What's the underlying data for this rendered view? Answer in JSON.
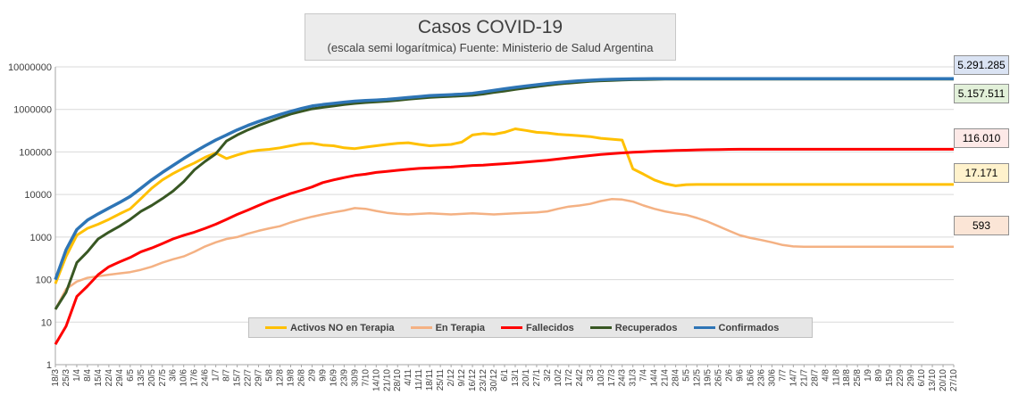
{
  "title": "Casos COVID-19",
  "subtitle": "(escala semi logarítmica) Fuente: Ministerio de Salud Argentina",
  "colors": {
    "activos": "#ffc000",
    "terapia": "#f4b183",
    "fallecidos": "#ff0000",
    "recuperados": "#385723",
    "confirmados": "#2e75b6",
    "grid": "#d9d9d9"
  },
  "callouts": [
    {
      "series": "Confirmados",
      "label": "5.291.285",
      "value": 5291285,
      "bg": "#dae3f3"
    },
    {
      "series": "Recuperados",
      "label": "5.157.511",
      "value": 5157511,
      "bg": "#e2f0d9"
    },
    {
      "series": "Fallecidos",
      "label": "116.010",
      "value": 116010,
      "bg": "#fde9e7"
    },
    {
      "series": "Activos NO en Terapia",
      "label": "17.171",
      "value": 17171,
      "bg": "#fff2cc"
    },
    {
      "series": "En Terapia",
      "label": "593",
      "value": 593,
      "bg": "#fbe5d6"
    }
  ],
  "chart_data": {
    "type": "line",
    "title": "Casos COVID-19",
    "subtitle": "(escala semi logarítmica) Fuente: Ministerio de Salud Argentina",
    "yscale": "log",
    "ylim": [
      1,
      10000000
    ],
    "y_ticks": [
      1,
      10,
      100,
      1000,
      10000,
      100000,
      1000000,
      10000000
    ],
    "y_tick_labels": [
      "1",
      "10",
      "100",
      "1000",
      "10000",
      "100000",
      "1000000",
      "10000000"
    ],
    "grid": true,
    "legend_position": "bottom",
    "x": [
      "18/3",
      "25/3",
      "1/4",
      "8/4",
      "15/4",
      "22/4",
      "29/4",
      "6/5",
      "13/5",
      "20/5",
      "27/5",
      "3/6",
      "10/6",
      "17/6",
      "24/6",
      "1/7",
      "8/7",
      "15/7",
      "22/7",
      "29/7",
      "5/8",
      "12/8",
      "19/8",
      "26/8",
      "2/9",
      "9/9",
      "16/9",
      "23/9",
      "30/9",
      "7/10",
      "14/10",
      "21/10",
      "28/10",
      "4/11",
      "11/11",
      "18/11",
      "25/11",
      "2/12",
      "9/12",
      "16/12",
      "23/12",
      "30/12",
      "6/1",
      "13/1",
      "20/1",
      "27/1",
      "3/2",
      "10/2",
      "17/2",
      "24/2",
      "3/3",
      "10/3",
      "17/3",
      "24/3",
      "31/3",
      "7/4",
      "14/4",
      "21/4",
      "28/4",
      "5/5",
      "12/5",
      "19/5",
      "26/5",
      "2/6",
      "9/6",
      "16/6",
      "23/6",
      "30/6",
      "7/7",
      "14/7",
      "21/7",
      "28/7",
      "4/8",
      "11/8",
      "18/8",
      "25/8",
      "1/9",
      "8/9",
      "15/9",
      "22/9",
      "29/9",
      "6/10",
      "13/10",
      "20/10",
      "27/10"
    ],
    "series": [
      {
        "name": "Activos NO en Terapia",
        "values": [
          80,
          350,
          1100,
          1600,
          2000,
          2600,
          3500,
          4600,
          8000,
          14000,
          22000,
          31000,
          42000,
          55000,
          75000,
          95000,
          70000,
          85000,
          100000,
          110000,
          115000,
          125000,
          140000,
          155000,
          160000,
          145000,
          140000,
          125000,
          120000,
          130000,
          140000,
          150000,
          160000,
          165000,
          150000,
          140000,
          145000,
          150000,
          170000,
          250000,
          270000,
          260000,
          290000,
          350000,
          320000,
          290000,
          280000,
          260000,
          250000,
          240000,
          230000,
          210000,
          200000,
          190000,
          40000,
          30000,
          22000,
          18000,
          16000,
          17000,
          17171,
          17171,
          17171,
          17171,
          17171,
          17171,
          17171,
          17171,
          17171,
          17171,
          17171,
          17171,
          17171,
          17171,
          17171,
          17171,
          17171,
          17171,
          17171,
          17171,
          17171,
          17171,
          17171,
          17171,
          17171
        ]
      },
      {
        "name": "En Terapia",
        "values": [
          20,
          60,
          90,
          110,
          120,
          130,
          140,
          150,
          170,
          200,
          250,
          300,
          350,
          450,
          600,
          750,
          900,
          1000,
          1200,
          1400,
          1600,
          1800,
          2200,
          2600,
          3000,
          3400,
          3800,
          4200,
          4800,
          4600,
          4100,
          3700,
          3500,
          3400,
          3500,
          3600,
          3500,
          3400,
          3500,
          3600,
          3500,
          3400,
          3500,
          3600,
          3700,
          3800,
          4000,
          4600,
          5200,
          5500,
          6000,
          7000,
          7800,
          7600,
          6800,
          5500,
          4600,
          4000,
          3600,
          3300,
          2800,
          2300,
          1800,
          1400,
          1100,
          950,
          850,
          750,
          650,
          600,
          593,
          593,
          593,
          593,
          593,
          593,
          593,
          593,
          593,
          593,
          593,
          593,
          593,
          593,
          593
        ]
      },
      {
        "name": "Fallecidos",
        "values": [
          3,
          8,
          40,
          70,
          130,
          200,
          260,
          330,
          450,
          550,
          700,
          900,
          1100,
          1300,
          1600,
          2000,
          2600,
          3400,
          4300,
          5500,
          7000,
          8600,
          10500,
          12500,
          15000,
          19000,
          22000,
          25000,
          28000,
          30000,
          33000,
          35000,
          37000,
          39000,
          41000,
          42000,
          43000,
          44000,
          46000,
          48000,
          49000,
          51000,
          53000,
          55000,
          58000,
          61000,
          64000,
          68000,
          73000,
          77000,
          82000,
          87000,
          91000,
          95000,
          98000,
          101000,
          104000,
          106000,
          108000,
          110000,
          112000,
          113000,
          114000,
          115000,
          116010,
          116010,
          116010,
          116010,
          116010,
          116010,
          116010,
          116010,
          116010,
          116010,
          116010,
          116010,
          116010,
          116010,
          116010,
          116010,
          116010,
          116010,
          116010,
          116010,
          116010
        ]
      },
      {
        "name": "Recuperados",
        "values": [
          20,
          50,
          250,
          450,
          900,
          1300,
          1800,
          2600,
          4000,
          5500,
          8000,
          12000,
          20000,
          38000,
          60000,
          90000,
          180000,
          250000,
          330000,
          420000,
          520000,
          640000,
          780000,
          900000,
          1030000,
          1120000,
          1200000,
          1300000,
          1380000,
          1450000,
          1500000,
          1560000,
          1640000,
          1740000,
          1830000,
          1920000,
          1980000,
          2020000,
          2080000,
          2150000,
          2300000,
          2500000,
          2700000,
          2950000,
          3200000,
          3450000,
          3700000,
          3950000,
          4150000,
          4350000,
          4550000,
          4700000,
          4800000,
          4900000,
          5000000,
          5050000,
          5100000,
          5130000,
          5150000,
          5157511,
          5157511,
          5157511,
          5157511,
          5157511,
          5157511,
          5157511,
          5157511,
          5157511,
          5157511,
          5157511,
          5157511,
          5157511,
          5157511,
          5157511,
          5157511,
          5157511,
          5157511,
          5157511,
          5157511,
          5157511,
          5157511,
          5157511,
          5157511,
          5157511,
          5157511
        ]
      },
      {
        "name": "Confirmados",
        "values": [
          100,
          500,
          1500,
          2500,
          3500,
          4800,
          6500,
          9000,
          14000,
          22000,
          33000,
          48000,
          70000,
          100000,
          140000,
          190000,
          250000,
          330000,
          420000,
          520000,
          630000,
          760000,
          900000,
          1050000,
          1200000,
          1300000,
          1380000,
          1480000,
          1560000,
          1620000,
          1660000,
          1720000,
          1800000,
          1900000,
          2000000,
          2100000,
          2160000,
          2220000,
          2280000,
          2380000,
          2580000,
          2800000,
          3050000,
          3300000,
          3550000,
          3800000,
          4050000,
          4300000,
          4500000,
          4700000,
          4850000,
          4980000,
          5080000,
          5150000,
          5210000,
          5250000,
          5275000,
          5285000,
          5291285,
          5291285,
          5291285,
          5291285,
          5291285,
          5291285,
          5291285,
          5291285,
          5291285,
          5291285,
          5291285,
          5291285,
          5291285,
          5291285,
          5291285,
          5291285,
          5291285,
          5291285,
          5291285,
          5291285,
          5291285,
          5291285,
          5291285,
          5291285,
          5291285,
          5291285,
          5291285
        ]
      }
    ]
  }
}
